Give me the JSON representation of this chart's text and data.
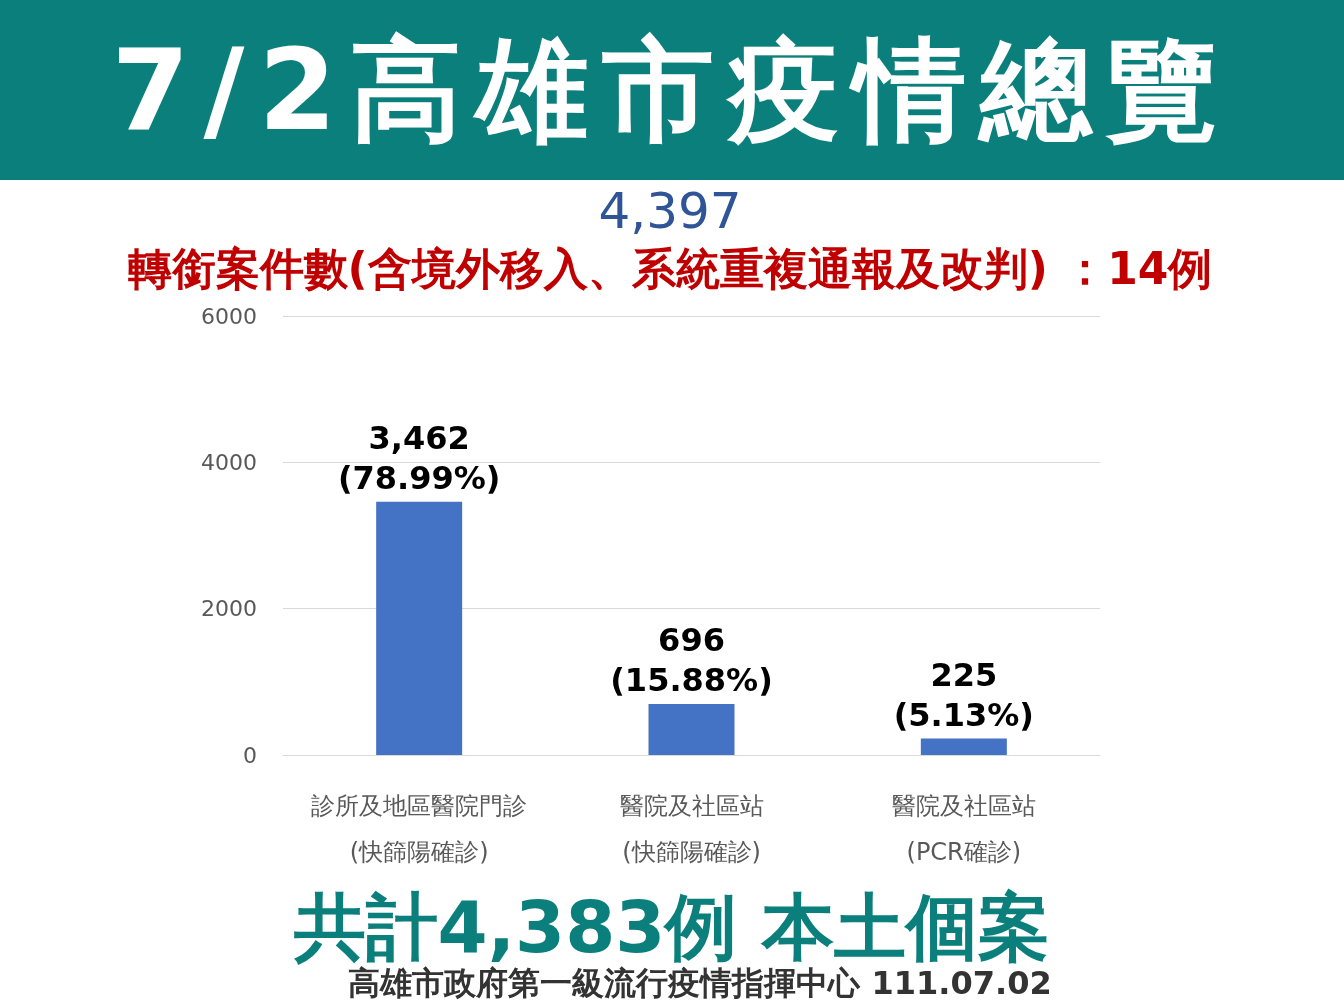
{
  "chart_data": {
    "type": "bar",
    "title": "7/2高雄市疫情總覽",
    "subtitle": "4,397",
    "categories": [
      "診所及地區醫院門診\n(快篩陽確診)",
      "醫院及社區站\n(快篩陽確診)",
      "醫院及社區站\n(PCR確診)"
    ],
    "values": [
      3462,
      696,
      225
    ],
    "color": "#4472c4",
    "value_labels": [
      "3,462\n(78.99%)",
      "696\n(15.88%)",
      "225\n(5.13%)"
    ],
    "ylim": [
      0,
      6000
    ],
    "yticks": [
      0,
      2000,
      4000,
      6000
    ],
    "grid": "y",
    "annotations": [
      "轉銜案件數(含境外移入、系統重複通報及改判) ：14例",
      "共計4,383例 本土個案",
      "高雄市政府第一級流行疫情指揮中心 111.07.02"
    ]
  }
}
